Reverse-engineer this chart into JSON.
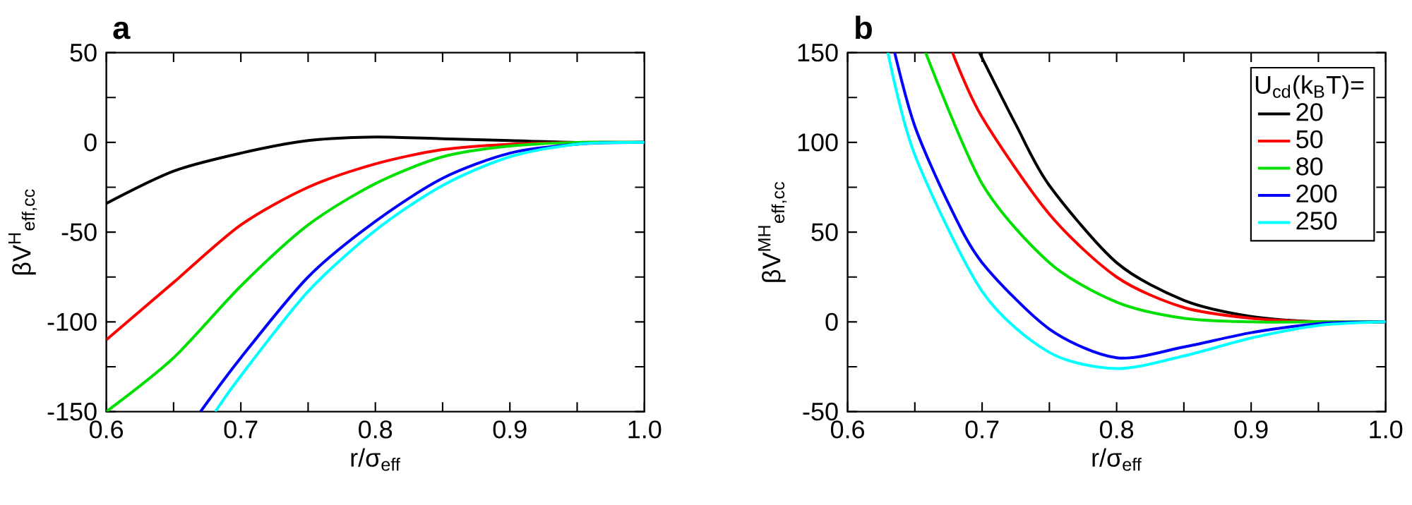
{
  "chart_data": [
    {
      "type": "line",
      "title": "a",
      "xlabel": "r/σ$_{eff}$",
      "ylabel": "βV$^{H}$$_{eff,cc}$",
      "xlim": [
        0.6,
        1.0
      ],
      "ylim": [
        -150,
        50
      ],
      "xticks": [
        0.6,
        {
          "value": 0.65,
          "label": null
        },
        0.7,
        {
          "value": 0.75,
          "label": null
        },
        0.8,
        {
          "value": 0.85,
          "label": null
        },
        0.9,
        {
          "value": 0.95,
          "label": null
        },
        {
          "value": 1.0,
          "label": "1.0"
        }
      ],
      "yticks": [
        -150,
        {
          "value": -125,
          "label": null
        },
        -100,
        {
          "value": -75,
          "label": null
        },
        -50,
        {
          "value": -25,
          "label": null
        },
        0,
        {
          "value": 25,
          "label": null
        },
        50
      ],
      "series": [
        {
          "color": "#000000",
          "x": [
            0.6,
            0.65,
            0.7,
            0.75,
            0.8,
            0.85,
            0.9,
            0.95,
            1.0
          ],
          "values": [
            -34,
            -16,
            -6,
            1,
            3,
            2,
            1,
            0,
            0
          ]
        },
        {
          "color": "#ff0000",
          "x": [
            0.6,
            0.65,
            0.7,
            0.75,
            0.8,
            0.85,
            0.9,
            0.95,
            1.0
          ],
          "values": [
            -110,
            -78,
            -46,
            -25,
            -12,
            -4,
            -1,
            0,
            0
          ]
        },
        {
          "color": "#00e000",
          "x": [
            0.6,
            0.65,
            0.7,
            0.75,
            0.8,
            0.85,
            0.9,
            0.95,
            1.0
          ],
          "values": [
            -150,
            -120,
            -80,
            -46,
            -23,
            -8,
            -2,
            0,
            0
          ]
        },
        {
          "color": "#0000ff",
          "x": [
            0.67,
            0.7,
            0.75,
            0.8,
            0.85,
            0.9,
            0.95,
            1.0
          ],
          "values": [
            -150,
            -120,
            -75,
            -44,
            -20,
            -6,
            -1,
            0
          ]
        },
        {
          "color": "#00ffff",
          "x": [
            0.681,
            0.7,
            0.75,
            0.8,
            0.85,
            0.9,
            0.95,
            1.0
          ],
          "values": [
            -150,
            -130,
            -83,
            -49,
            -24,
            -8,
            -1,
            0
          ]
        }
      ]
    },
    {
      "type": "line",
      "title": "b",
      "xlabel": "r/σ$_{eff}$",
      "ylabel": "βV$^{MH}$$_{eff,cc}$",
      "legend_title": "U$_{cd}$(k$_{B}$T)=",
      "legend": "top right",
      "xlim": [
        0.6,
        1.0
      ],
      "ylim": [
        -50,
        150
      ],
      "xticks": [
        0.6,
        {
          "value": 0.65,
          "label": null
        },
        0.7,
        {
          "value": 0.75,
          "label": null
        },
        0.8,
        {
          "value": 0.85,
          "label": null
        },
        0.9,
        {
          "value": 0.95,
          "label": null
        },
        {
          "value": 1.0,
          "label": "1.0"
        }
      ],
      "yticks": [
        -50,
        {
          "value": -25,
          "label": null
        },
        0,
        {
          "value": 25,
          "label": null
        },
        50,
        {
          "value": 75,
          "label": null
        },
        100,
        {
          "value": 125,
          "label": null
        },
        150
      ],
      "series": [
        {
          "name": "20",
          "color": "#000000",
          "x": [
            0.698,
            0.725,
            0.75,
            0.8,
            0.85,
            0.9,
            0.95,
            1.0
          ],
          "values": [
            150,
            110,
            76,
            33,
            12,
            3,
            0,
            0
          ]
        },
        {
          "name": "50",
          "color": "#ff0000",
          "x": [
            0.678,
            0.7,
            0.75,
            0.8,
            0.85,
            0.9,
            0.95,
            1.0
          ],
          "values": [
            150,
            114,
            60,
            25,
            8,
            2,
            0,
            0
          ]
        },
        {
          "name": "80",
          "color": "#00e000",
          "x": [
            0.658,
            0.7,
            0.75,
            0.8,
            0.85,
            0.9,
            0.95,
            1.0
          ],
          "values": [
            150,
            77,
            33,
            11,
            2,
            0,
            0,
            0
          ]
        },
        {
          "name": "200",
          "color": "#0000ff",
          "x": [
            0.635,
            0.65,
            0.675,
            0.7,
            0.75,
            0.8,
            0.85,
            0.9,
            0.95,
            1.0
          ],
          "values": [
            150,
            109,
            66,
            33,
            -4,
            -20,
            -14,
            -6,
            -1,
            0
          ]
        },
        {
          "name": "250",
          "color": "#00ffff",
          "x": [
            0.63,
            0.65,
            0.7,
            0.75,
            0.8,
            0.85,
            0.9,
            0.95,
            1.0
          ],
          "values": [
            150,
            93,
            17,
            -17,
            -26,
            -19,
            -9,
            -2,
            0
          ]
        }
      ]
    }
  ]
}
